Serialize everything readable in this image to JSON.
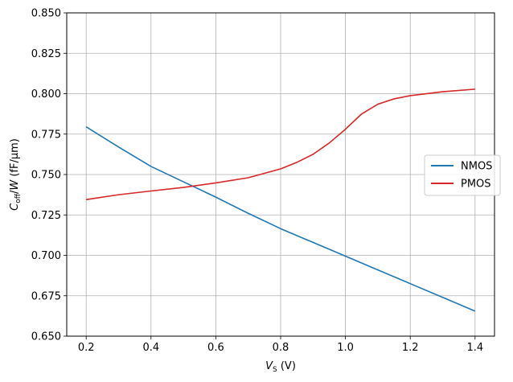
{
  "chart_data": {
    "type": "line",
    "xlabel": {
      "var": "V",
      "sub": "S",
      "unit": " (V)"
    },
    "ylabel": {
      "var": "C",
      "sub": "off",
      "mid": "/",
      "var2": "W",
      "unit": " (fF/μm)"
    },
    "xlim": [
      0.14,
      1.46
    ],
    "ylim": [
      0.65,
      0.85
    ],
    "xticks": [
      "0.2",
      "0.4",
      "0.6",
      "0.8",
      "1.0",
      "1.2",
      "1.4"
    ],
    "yticks": [
      "0.650",
      "0.675",
      "0.700",
      "0.725",
      "0.750",
      "0.775",
      "0.800",
      "0.825",
      "0.850"
    ],
    "grid": true,
    "legend_position": "center-right",
    "series": [
      {
        "name": "NMOS",
        "color": "#1f77b4",
        "x": [
          0.2,
          0.3,
          0.4,
          0.5,
          0.6,
          0.7,
          0.8,
          0.9,
          1.0,
          1.1,
          1.2,
          1.3,
          1.4
        ],
        "y": [
          0.7795,
          0.767,
          0.755,
          0.7455,
          0.736,
          0.726,
          0.7165,
          0.708,
          0.6995,
          0.691,
          0.6825,
          0.674,
          0.6655
        ]
      },
      {
        "name": "PMOS",
        "color": "#d62728",
        "x": [
          0.2,
          0.3,
          0.4,
          0.5,
          0.6,
          0.7,
          0.8,
          0.85,
          0.9,
          0.95,
          1.0,
          1.05,
          1.1,
          1.15,
          1.2,
          1.3,
          1.4
        ],
        "y": [
          0.7345,
          0.7375,
          0.7398,
          0.742,
          0.7448,
          0.748,
          0.7535,
          0.7575,
          0.7625,
          0.7695,
          0.778,
          0.7875,
          0.7935,
          0.7968,
          0.7988,
          0.8012,
          0.8028
        ]
      }
    ]
  }
}
